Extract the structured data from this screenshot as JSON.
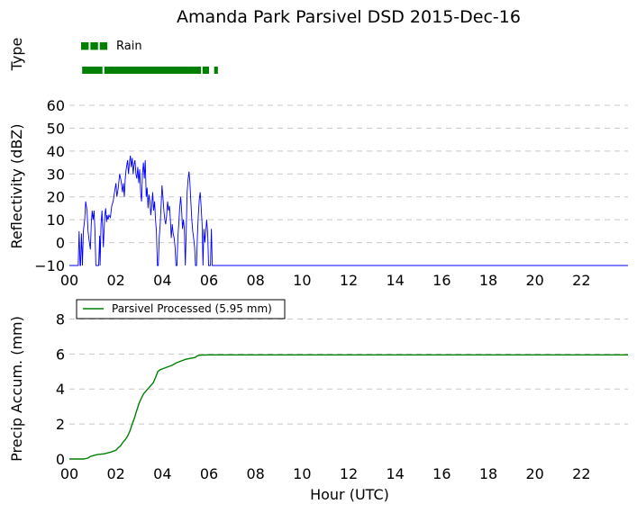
{
  "title": "Amanda Park Parsivel DSD 2015-Dec-16",
  "colors": {
    "reflectivity": "#0000ff",
    "accum": "#008000",
    "type": "#008000",
    "grid": "#c8c8c8"
  },
  "chart_data": [
    {
      "type": "line",
      "panel": "precipitation-type",
      "ylabel": "Type",
      "legend": [
        {
          "label": "Rain",
          "marker": "■■■"
        }
      ],
      "series": [
        {
          "name": "Rain",
          "segments": [
            [
              0.55,
              1.42
            ],
            [
              1.5,
              5.65
            ],
            [
              5.72,
              6.0
            ],
            [
              6.22,
              6.38
            ]
          ]
        }
      ]
    },
    {
      "type": "line",
      "panel": "reflectivity",
      "ylabel": "Reflectivity (dBZ)",
      "xlim": [
        0,
        24
      ],
      "ylim": [
        -10,
        60
      ],
      "grid": true,
      "x_ticks": [
        "00",
        "02",
        "04",
        "06",
        "08",
        "10",
        "12",
        "14",
        "16",
        "18",
        "20",
        "22"
      ],
      "y_ticks": [
        "−10",
        "0",
        "10",
        "20",
        "30",
        "40",
        "50",
        "60"
      ],
      "series": [
        {
          "x": [
            0,
            0.38,
            0.42,
            0.46,
            0.48,
            0.52,
            0.56,
            0.6,
            0.66,
            0.7,
            0.76,
            0.8,
            0.86,
            0.9,
            0.94,
            0.98,
            1.02,
            1.06,
            1.1,
            1.14,
            1.18,
            1.22,
            1.26,
            1.3,
            1.32,
            1.36,
            1.4,
            1.46,
            1.52,
            1.56,
            1.6,
            1.62,
            1.66,
            1.7,
            1.76,
            1.82,
            1.88,
            1.94,
            2.0,
            2.04,
            2.1,
            2.16,
            2.22,
            2.28,
            2.32,
            2.36,
            2.4,
            2.44,
            2.5,
            2.54,
            2.58,
            2.62,
            2.66,
            2.7,
            2.74,
            2.78,
            2.82,
            2.86,
            2.9,
            2.94,
            2.98,
            3.02,
            3.06,
            3.1,
            3.14,
            3.18,
            3.22,
            3.26,
            3.3,
            3.34,
            3.38,
            3.42,
            3.46,
            3.5,
            3.54,
            3.58,
            3.62,
            3.66,
            3.7,
            3.74,
            3.78,
            3.82,
            3.86,
            3.9,
            3.94,
            3.98,
            4.02,
            4.06,
            4.1,
            4.14,
            4.18,
            4.22,
            4.26,
            4.3,
            4.34,
            4.38,
            4.42,
            4.46,
            4.5,
            4.54,
            4.58,
            4.62,
            4.66,
            4.7,
            4.74,
            4.78,
            4.82,
            4.86,
            4.9,
            4.94,
            4.98,
            5.02,
            5.06,
            5.1,
            5.14,
            5.18,
            5.22,
            5.26,
            5.3,
            5.34,
            5.38,
            5.42,
            5.46,
            5.5,
            5.54,
            5.58,
            5.62,
            5.66,
            5.7,
            5.74,
            5.78,
            5.82,
            5.86,
            5.9,
            5.94,
            5.98,
            6.02,
            6.06,
            6.1,
            6.14,
            6.18,
            6.22,
            6.26,
            6.3,
            6.34,
            6.38,
            24.0
          ],
          "y": [
            -10,
            -10,
            5,
            -10,
            -10,
            4,
            -10,
            5,
            10,
            18,
            14,
            5,
            0,
            -3,
            8,
            14,
            10,
            14,
            5,
            -10,
            -10,
            -10,
            -10,
            3,
            -10,
            8,
            14,
            -2,
            12,
            15,
            9,
            12,
            10,
            12,
            11,
            16,
            18,
            22,
            26,
            20,
            24,
            30,
            27,
            22,
            26,
            20,
            28,
            32,
            36,
            30,
            35,
            38,
            33,
            37,
            30,
            34,
            36,
            30,
            28,
            33,
            26,
            32,
            22,
            18,
            30,
            35,
            28,
            36,
            20,
            24,
            15,
            21,
            18,
            12,
            16,
            22,
            14,
            18,
            10,
            5,
            -10,
            -10,
            2,
            8,
            16,
            25,
            20,
            14,
            10,
            8,
            12,
            18,
            14,
            16,
            10,
            2,
            8,
            4,
            2,
            -2,
            -10,
            -10,
            2,
            8,
            15,
            20,
            15,
            6,
            10,
            6,
            -10,
            5,
            22,
            28,
            31,
            26,
            18,
            10,
            5,
            2,
            -2,
            -10,
            -10,
            3,
            12,
            19,
            22,
            16,
            8,
            -10,
            6,
            0,
            5,
            10,
            4,
            -10,
            -10,
            -10,
            6,
            -10,
            -10,
            -10,
            -10,
            -10,
            -10,
            -10,
            -10
          ]
        }
      ]
    },
    {
      "type": "line",
      "panel": "precip-accumulation",
      "ylabel": "Precip Accum. (mm)",
      "xlabel": "Hour (UTC)",
      "xlim": [
        0,
        24
      ],
      "ylim": [
        0,
        9
      ],
      "grid": true,
      "x_ticks": [
        "00",
        "02",
        "04",
        "06",
        "08",
        "10",
        "12",
        "14",
        "16",
        "18",
        "20",
        "22"
      ],
      "y_ticks": [
        "0",
        "2",
        "4",
        "6",
        "8"
      ],
      "legend": {
        "label": "Parsivel Processed (5.95 mm)",
        "placement": "top-left"
      },
      "series": [
        {
          "name": "Parsivel Processed (5.95 mm)",
          "x": [
            0,
            0.6,
            0.8,
            0.9,
            1.2,
            1.5,
            1.8,
            2.0,
            2.1,
            2.2,
            2.3,
            2.4,
            2.5,
            2.6,
            2.7,
            2.8,
            2.9,
            3.0,
            3.1,
            3.2,
            3.3,
            3.4,
            3.5,
            3.6,
            3.7,
            3.8,
            3.9,
            4.0,
            4.1,
            4.2,
            4.4,
            4.6,
            4.8,
            5.0,
            5.2,
            5.4,
            5.5,
            5.6,
            5.7,
            6.0,
            6.4,
            24.0
          ],
          "y": [
            0,
            0,
            0.05,
            0.15,
            0.25,
            0.3,
            0.4,
            0.5,
            0.65,
            0.75,
            0.95,
            1.1,
            1.3,
            1.6,
            2.0,
            2.35,
            2.8,
            3.2,
            3.5,
            3.75,
            3.9,
            4.05,
            4.2,
            4.35,
            4.65,
            5.0,
            5.1,
            5.15,
            5.2,
            5.25,
            5.35,
            5.5,
            5.6,
            5.7,
            5.75,
            5.8,
            5.9,
            5.93,
            5.94,
            5.95,
            5.95,
            5.95
          ]
        }
      ]
    }
  ]
}
